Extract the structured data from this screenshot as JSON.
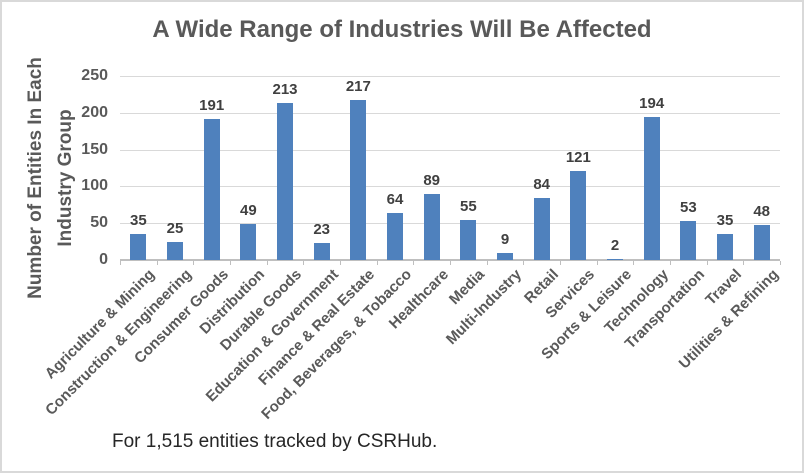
{
  "chart_data": {
    "type": "bar",
    "title": "A Wide Range of Industries Will Be Affected",
    "ylabel": "Number of Entities In Each Industry Group",
    "ylabel_lines": [
      "Number of Entities In Each",
      "Industry Group"
    ],
    "xlabel": "",
    "categories": [
      "Agriculture & Mining",
      "Construction & Engineering",
      "Consumer Goods",
      "Distribution",
      "Durable Goods",
      "Education & Government",
      "Finance & Real Estate",
      "Food, Beverages, & Tobacco",
      "Healthcare",
      "Media",
      "Multi-Industry",
      "Retail",
      "Services",
      "Sports & Leisure",
      "Technology",
      "Transportation",
      "Travel",
      "Utilities & Refining"
    ],
    "values": [
      35,
      25,
      191,
      49,
      213,
      23,
      217,
      64,
      89,
      55,
      9,
      84,
      121,
      2,
      194,
      53,
      35,
      48
    ],
    "data_labels": true,
    "yticks": [
      0,
      50,
      100,
      150,
      200,
      250
    ],
    "ylim": [
      0,
      250
    ],
    "grid": true,
    "legend_position": "none",
    "colors": {
      "bar": "#4f81bd",
      "gridline": "#d9d9d9",
      "axis": "#bfbfbf",
      "title_text": "#595959",
      "tick_text": "#595959",
      "value_label_text": "#404040",
      "caption_text": "#262626",
      "frame_border": "#d9d9d9"
    }
  },
  "caption": "For 1,515 entities tracked by CSRHub."
}
